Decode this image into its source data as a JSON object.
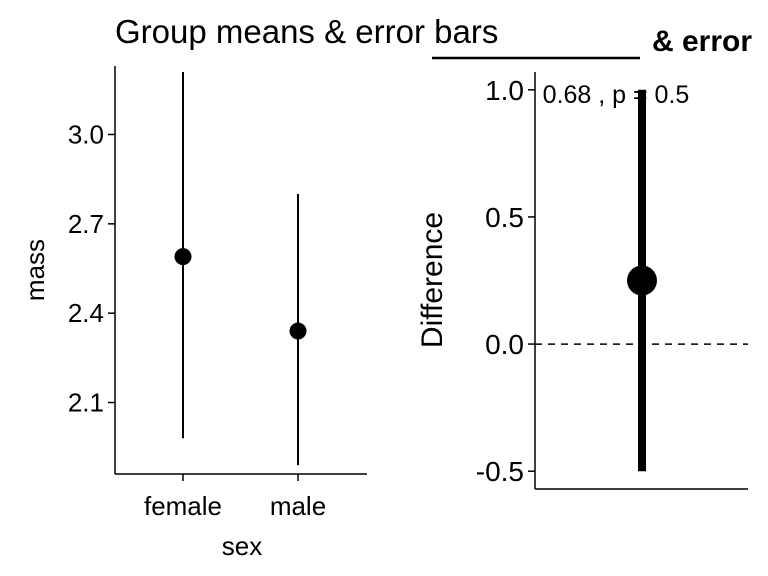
{
  "chart_data": [
    {
      "type": "scatter",
      "title": "Group means & error bars",
      "xlabel": "sex",
      "ylabel": "mass",
      "categories": [
        "female",
        "male"
      ],
      "series": [
        {
          "values": [
            2.59,
            2.34
          ],
          "error_low": [
            1.98,
            1.89
          ],
          "error_high": [
            3.21,
            2.8
          ]
        }
      ],
      "ylim": [
        1.86,
        3.23
      ],
      "yticks": [
        2.1,
        2.4,
        2.7,
        3.0
      ],
      "ytick_labels": [
        "2.1",
        "2.4",
        "2.7",
        "3.0"
      ],
      "grid": false
    },
    {
      "type": "scatter",
      "title": "& error",
      "annotation": "0.68 , p = 0.5",
      "ylabel": "Difference",
      "categories": [
        ""
      ],
      "series": [
        {
          "values": [
            0.25
          ],
          "error_low": [
            -0.5
          ],
          "error_high": [
            1.0
          ]
        }
      ],
      "reference_line": 0.0,
      "ylim": [
        -0.57,
        1.07
      ],
      "yticks": [
        -0.5,
        0.0,
        0.5,
        1.0
      ],
      "ytick_labels": [
        "-0.5",
        "0.0",
        "0.5",
        "1.0"
      ],
      "grid": false
    }
  ]
}
